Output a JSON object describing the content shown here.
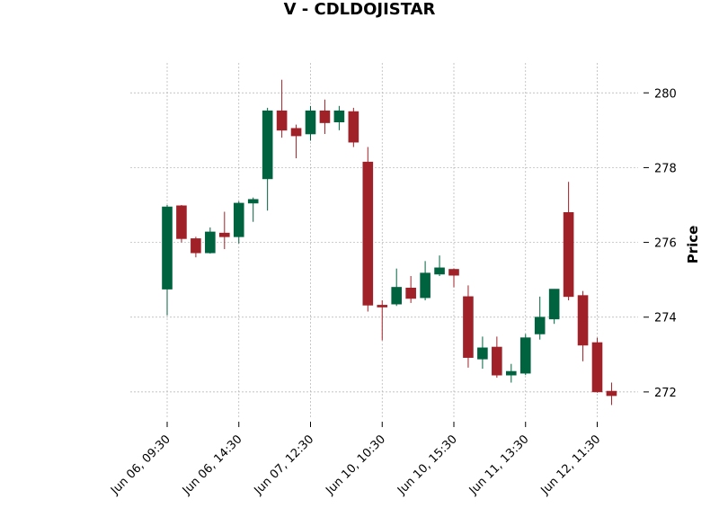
{
  "chart_data": {
    "type": "candlestick",
    "title": "V - CDLDOJISTAR",
    "xlabel": "",
    "ylabel": "Price",
    "ylim": [
      271.3,
      280.8
    ],
    "y_ticks": [
      272,
      274,
      276,
      278,
      280
    ],
    "y_tick_labels": [
      "272",
      "274",
      "276",
      "278",
      "280"
    ],
    "x_tick_labels": [
      {
        "index": 0,
        "label": "Jun 06, 09:30"
      },
      {
        "index": 5,
        "label": "Jun 06, 14:30"
      },
      {
        "index": 10,
        "label": "Jun 07, 12:30"
      },
      {
        "index": 15,
        "label": "Jun 10, 10:30"
      },
      {
        "index": 20,
        "label": "Jun 10, 15:30"
      },
      {
        "index": 25,
        "label": "Jun 11, 13:30"
      },
      {
        "index": 30,
        "label": "Jun 12, 11:30"
      }
    ],
    "grid": true,
    "colors": {
      "up": "#006340",
      "down": "#a02128",
      "grid": "#b0b0b0"
    },
    "candles": [
      {
        "open": 274.75,
        "high": 277.0,
        "low": 274.05,
        "close": 276.95
      },
      {
        "open": 276.98,
        "high": 277.0,
        "low": 276.0,
        "close": 276.1
      },
      {
        "open": 276.1,
        "high": 276.15,
        "low": 275.6,
        "close": 275.72
      },
      {
        "open": 275.72,
        "high": 276.4,
        "low": 275.7,
        "close": 276.28
      },
      {
        "open": 276.25,
        "high": 276.82,
        "low": 275.82,
        "close": 276.15
      },
      {
        "open": 276.15,
        "high": 277.1,
        "low": 275.97,
        "close": 277.05
      },
      {
        "open": 277.05,
        "high": 277.2,
        "low": 276.55,
        "close": 277.15
      },
      {
        "open": 277.7,
        "high": 279.6,
        "low": 276.85,
        "close": 279.52
      },
      {
        "open": 279.52,
        "high": 280.35,
        "low": 278.8,
        "close": 279.0
      },
      {
        "open": 279.05,
        "high": 279.15,
        "low": 278.25,
        "close": 278.85
      },
      {
        "open": 278.9,
        "high": 279.65,
        "low": 278.72,
        "close": 279.52
      },
      {
        "open": 279.52,
        "high": 279.82,
        "low": 278.9,
        "close": 279.2
      },
      {
        "open": 279.22,
        "high": 279.65,
        "low": 279.0,
        "close": 279.52
      },
      {
        "open": 279.5,
        "high": 279.6,
        "low": 278.55,
        "close": 278.68
      },
      {
        "open": 278.15,
        "high": 278.55,
        "low": 274.15,
        "close": 274.32
      },
      {
        "open": 274.32,
        "high": 274.45,
        "low": 273.38,
        "close": 274.27
      },
      {
        "open": 274.35,
        "high": 275.3,
        "low": 274.3,
        "close": 274.8
      },
      {
        "open": 274.78,
        "high": 275.1,
        "low": 274.38,
        "close": 274.5
      },
      {
        "open": 274.52,
        "high": 275.5,
        "low": 274.45,
        "close": 275.18
      },
      {
        "open": 275.15,
        "high": 275.65,
        "low": 275.1,
        "close": 275.32
      },
      {
        "open": 275.28,
        "high": 275.3,
        "low": 274.8,
        "close": 275.12
      },
      {
        "open": 274.55,
        "high": 274.85,
        "low": 272.65,
        "close": 272.92
      },
      {
        "open": 272.88,
        "high": 273.48,
        "low": 272.62,
        "close": 273.18
      },
      {
        "open": 273.2,
        "high": 273.48,
        "low": 272.38,
        "close": 272.45
      },
      {
        "open": 272.45,
        "high": 272.75,
        "low": 272.25,
        "close": 272.55
      },
      {
        "open": 272.5,
        "high": 273.55,
        "low": 272.45,
        "close": 273.45
      },
      {
        "open": 273.55,
        "high": 274.55,
        "low": 273.4,
        "close": 274.0
      },
      {
        "open": 273.95,
        "high": 274.75,
        "low": 273.82,
        "close": 274.75
      },
      {
        "open": 276.8,
        "high": 277.62,
        "low": 274.45,
        "close": 274.55
      },
      {
        "open": 274.58,
        "high": 274.7,
        "low": 272.82,
        "close": 273.25
      },
      {
        "open": 273.32,
        "high": 273.45,
        "low": 271.98,
        "close": 272.0
      },
      {
        "open": 272.02,
        "high": 272.25,
        "low": 271.65,
        "close": 271.9
      }
    ]
  }
}
